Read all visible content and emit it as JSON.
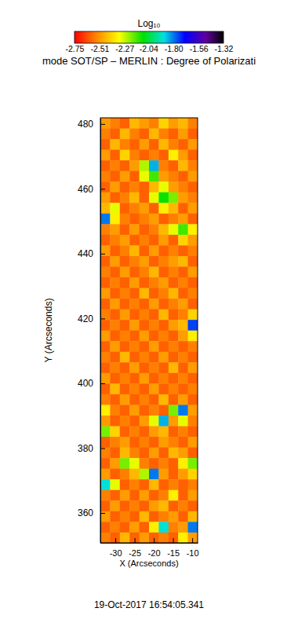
{
  "chart_data": {
    "type": "heatmap",
    "title": "mode SOT/SP – MERLIN : Degree of Polarizati",
    "x_label": "X (Arcseconds)",
    "y_label": "Y (Arcseconds)",
    "annotation": "19-Oct-2017 16:54:05.341",
    "xlim": [
      -33.9,
      -8.6
    ],
    "ylim": [
      350.8,
      481.9
    ],
    "xticks": [
      -30,
      -25,
      -20,
      -15,
      -10
    ],
    "yticks": [
      360,
      380,
      400,
      420,
      440,
      460,
      480
    ],
    "colorbar": {
      "label": "Log₁₀",
      "range": [
        -2.75,
        -1.32
      ],
      "ticks": [
        -2.75,
        -2.51,
        -2.27,
        -2.04,
        {
          "value": -1.8,
          "label": "-1.80"
        },
        -1.56,
        -1.32
      ]
    },
    "x": [
      -32.64,
      -30.11,
      -27.58,
      -25.04,
      -22.51,
      -19.98,
      -17.45,
      -14.92,
      -12.39,
      -9.87
    ],
    "y": [
      480.26,
      476.98,
      473.7,
      470.42,
      467.14,
      463.86,
      460.58,
      457.3,
      454.02,
      450.74,
      447.46,
      444.18,
      440.9,
      437.62,
      434.34,
      431.06,
      427.78,
      424.5,
      421.22,
      417.94,
      414.66,
      411.38,
      408.1,
      404.82,
      401.54,
      398.26,
      394.98,
      391.7,
      388.42,
      385.14,
      381.86,
      378.58,
      375.3,
      372.02,
      368.74,
      365.46,
      362.18,
      358.9,
      355.62,
      352.34
    ],
    "z": [
      [
        -2.5,
        -2.55,
        -2.6,
        -2.45,
        -2.5,
        -2.55,
        -2.4,
        -2.5,
        -2.45,
        -2.55
      ],
      [
        -2.55,
        -2.6,
        -2.45,
        -2.55,
        -2.6,
        -2.45,
        -2.55,
        -2.6,
        -2.5,
        -2.6
      ],
      [
        -2.6,
        -2.45,
        -2.55,
        -2.6,
        -2.5,
        -2.6,
        -2.45,
        -2.55,
        -2.6,
        -2.5
      ],
      [
        -2.5,
        -2.6,
        -2.4,
        -2.55,
        -2.6,
        -2.55,
        -2.6,
        -2.35,
        -2.5,
        -2.6
      ],
      [
        -2.6,
        -2.55,
        -2.6,
        -2.5,
        -2.25,
        -1.85,
        -2.55,
        -2.6,
        -2.45,
        -2.55
      ],
      [
        -2.55,
        -2.6,
        -2.5,
        -2.6,
        -2.3,
        -2.15,
        -2.5,
        -2.55,
        -2.6,
        -2.5
      ],
      [
        -2.6,
        -2.5,
        -2.6,
        -2.55,
        -2.6,
        -2.45,
        -2.3,
        -2.5,
        -2.55,
        -2.6
      ],
      [
        -2.5,
        -2.6,
        -2.55,
        -2.45,
        -2.6,
        -2.3,
        -2.1,
        -2.2,
        -2.5,
        -2.55
      ],
      [
        -2.45,
        -2.3,
        -2.6,
        -2.55,
        -2.5,
        -2.6,
        -2.35,
        -2.45,
        -2.6,
        -2.5
      ],
      [
        -1.8,
        -2.35,
        -2.55,
        -2.6,
        -2.55,
        -2.5,
        -2.6,
        -2.55,
        -2.5,
        -2.6
      ],
      [
        -2.55,
        -2.5,
        -2.6,
        -2.5,
        -2.6,
        -2.55,
        -2.45,
        -2.3,
        -2.15,
        -2.35
      ],
      [
        -2.6,
        -2.55,
        -2.5,
        -2.6,
        -2.55,
        -2.6,
        -2.5,
        -2.6,
        -2.4,
        -2.5
      ],
      [
        -2.5,
        -2.6,
        -2.55,
        -2.45,
        -2.6,
        -2.5,
        -2.6,
        -2.55,
        -2.6,
        -2.55
      ],
      [
        -2.6,
        -2.5,
        -2.6,
        -2.55,
        -2.5,
        -2.6,
        -2.55,
        -2.5,
        -2.45,
        -2.6
      ],
      [
        -2.55,
        -2.6,
        -2.5,
        -2.6,
        -2.55,
        -2.45,
        -2.6,
        -2.55,
        -2.6,
        -2.5
      ],
      [
        -2.6,
        -2.55,
        -2.6,
        -2.5,
        -2.6,
        -2.55,
        -2.5,
        -2.6,
        -2.55,
        -2.6
      ],
      [
        -2.5,
        -2.6,
        -2.55,
        -2.6,
        -2.45,
        -2.6,
        -2.55,
        -2.45,
        -2.6,
        -2.55
      ],
      [
        -2.6,
        -2.5,
        -2.6,
        -2.55,
        -2.6,
        -2.5,
        -2.6,
        -2.55,
        -2.5,
        -2.6
      ],
      [
        -2.55,
        -2.6,
        -2.5,
        -2.6,
        -2.55,
        -2.6,
        -2.45,
        -2.6,
        -2.55,
        -2.4
      ],
      [
        -2.6,
        -2.55,
        -2.6,
        -2.5,
        -2.6,
        -2.55,
        -2.6,
        -2.5,
        -2.45,
        -1.75
      ],
      [
        -2.5,
        -2.6,
        -2.55,
        -2.6,
        -2.5,
        -2.6,
        -2.55,
        -2.6,
        -2.5,
        -2.35
      ],
      [
        -2.6,
        -2.5,
        -2.6,
        -2.55,
        -2.6,
        -2.5,
        -2.6,
        -2.55,
        -2.6,
        -2.55
      ],
      [
        -2.55,
        -2.6,
        -2.45,
        -2.6,
        -2.55,
        -2.6,
        -2.5,
        -2.6,
        -2.55,
        -2.6
      ],
      [
        -2.6,
        -2.55,
        -2.6,
        -2.5,
        -2.6,
        -2.55,
        -2.6,
        -2.45,
        -2.6,
        -2.5
      ],
      [
        -2.5,
        -2.6,
        -2.55,
        -2.6,
        -2.5,
        -2.6,
        -2.55,
        -2.6,
        -2.55,
        -2.6
      ],
      [
        -2.6,
        -2.45,
        -2.6,
        -2.55,
        -2.6,
        -2.5,
        -2.6,
        -2.55,
        -2.6,
        -2.55
      ],
      [
        -2.55,
        -2.6,
        -2.5,
        -2.6,
        -2.55,
        -2.6,
        -2.45,
        -2.6,
        -2.5,
        -2.6
      ],
      [
        -2.35,
        -2.55,
        -2.6,
        -2.5,
        -2.6,
        -2.55,
        -2.6,
        -2.2,
        -1.8,
        -2.5
      ],
      [
        -2.5,
        -2.6,
        -2.55,
        -2.6,
        -2.5,
        -2.3,
        -1.85,
        -2.5,
        -2.3,
        -2.55
      ],
      [
        -2.2,
        -2.4,
        -2.6,
        -2.55,
        -2.6,
        -2.5,
        -2.45,
        -2.6,
        -2.55,
        -2.6
      ],
      [
        -2.6,
        -2.55,
        -2.5,
        -2.6,
        -2.55,
        -2.6,
        -2.5,
        -2.55,
        -2.6,
        -2.5
      ],
      [
        -2.55,
        -2.6,
        -2.45,
        -2.55,
        -2.6,
        -2.5,
        -2.6,
        -2.45,
        -2.5,
        -2.6
      ],
      [
        -2.6,
        -2.5,
        -2.2,
        -2.3,
        -2.55,
        -2.6,
        -2.55,
        -2.6,
        -2.35,
        -2.2
      ],
      [
        -2.5,
        -2.6,
        -2.55,
        -2.45,
        -2.25,
        -1.8,
        -2.5,
        -2.6,
        -2.5,
        -2.4
      ],
      [
        -1.9,
        -2.3,
        -2.6,
        -2.55,
        -2.6,
        -2.45,
        -2.6,
        -2.55,
        -2.6,
        -2.55
      ],
      [
        -2.55,
        -2.6,
        -2.5,
        -2.6,
        -2.5,
        -2.6,
        -2.55,
        -2.35,
        -2.6,
        -2.5
      ],
      [
        -2.6,
        -2.5,
        -2.6,
        -2.55,
        -2.6,
        -2.5,
        -2.45,
        -2.6,
        -2.55,
        -2.6
      ],
      [
        -2.5,
        -2.6,
        -2.55,
        -2.6,
        -2.45,
        -2.6,
        -2.55,
        -2.5,
        -2.6,
        -2.45
      ],
      [
        -2.6,
        -2.55,
        -2.6,
        -2.5,
        -2.6,
        -2.35,
        -1.9,
        -2.55,
        -2.5,
        -1.8
      ],
      [
        -2.55,
        -2.6,
        -2.45,
        -2.6,
        -2.5,
        -2.6,
        -2.55,
        -2.6,
        -2.35,
        -2.5
      ]
    ]
  }
}
